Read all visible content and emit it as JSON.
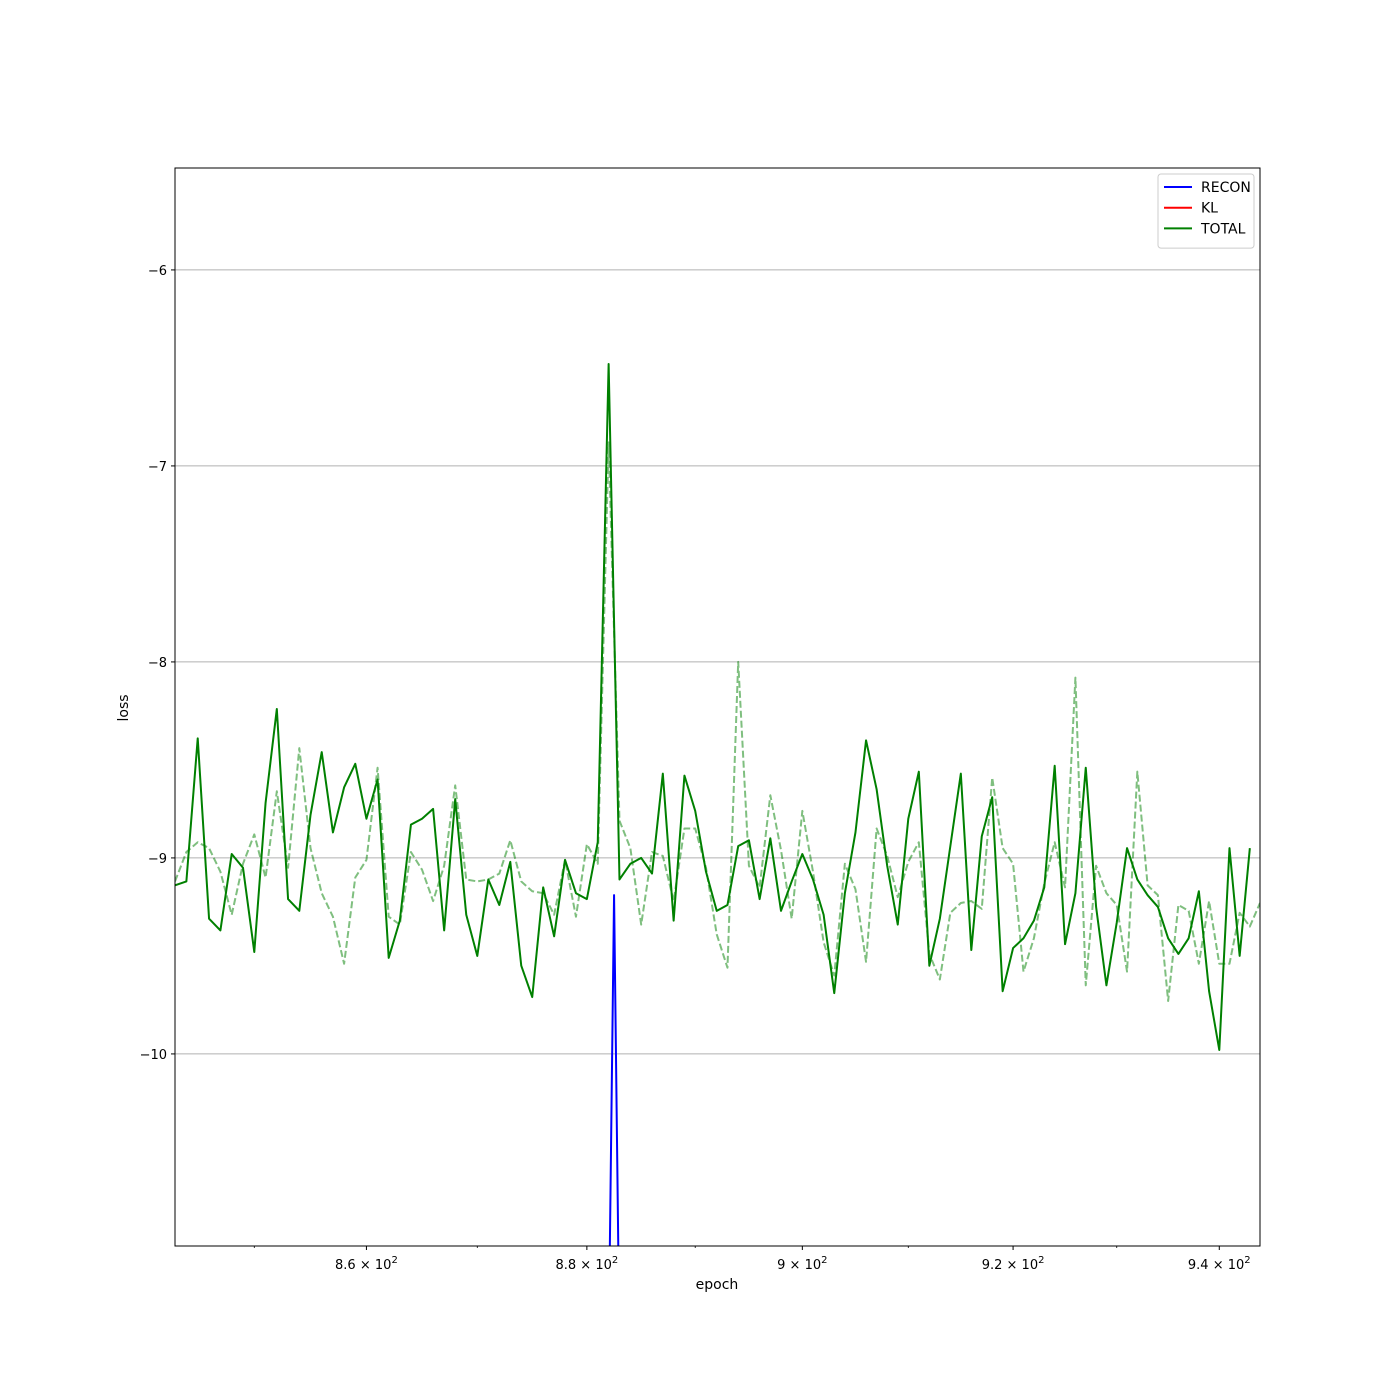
{
  "chart_data": {
    "type": "line",
    "title": "",
    "xlabel": "epoch",
    "ylabel": "loss",
    "x_scale": "log",
    "xlim": [
      843,
      944
    ],
    "ylim": [
      -10.98,
      -5.48
    ],
    "x_ticks": [
      {
        "value": 860,
        "mantissa": "8.6",
        "base": "10",
        "exp": "2"
      },
      {
        "value": 880,
        "mantissa": "8.8",
        "base": "10",
        "exp": "2"
      },
      {
        "value": 900,
        "mantissa": "9",
        "base": "10",
        "exp": "2"
      },
      {
        "value": 920,
        "mantissa": "9.2",
        "base": "10",
        "exp": "2"
      },
      {
        "value": 940,
        "mantissa": "9.4",
        "base": "10",
        "exp": "2"
      }
    ],
    "y_ticks": [
      {
        "value": -6,
        "label": "−6"
      },
      {
        "value": -7,
        "label": "−7"
      },
      {
        "value": -8,
        "label": "−8"
      },
      {
        "value": -9,
        "label": "−9"
      },
      {
        "value": -10,
        "label": "−10"
      }
    ],
    "grid": "horizontal",
    "legend_position": "top-right",
    "x_start": 843,
    "series": [
      {
        "name": "RECON",
        "color": "#0000ff",
        "style": "solid",
        "values_sparse": [
          [
            882,
            -11.5
          ],
          [
            882.5,
            -9.19
          ],
          [
            883,
            -11.5
          ]
        ]
      },
      {
        "name": "KL",
        "color": "#ff0000",
        "style": "solid",
        "values_sparse": []
      },
      {
        "name": "TOTAL",
        "color": "#008000",
        "style": "solid",
        "values": [
          -9.14,
          -9.12,
          -8.39,
          -9.31,
          -9.37,
          -8.98,
          -9.05,
          -9.48,
          -8.72,
          -8.24,
          -9.21,
          -9.27,
          -8.78,
          -8.46,
          -8.87,
          -8.64,
          -8.52,
          -8.8,
          -8.6,
          -9.51,
          -9.32,
          -8.83,
          -8.8,
          -8.75,
          -9.37,
          -8.7,
          -9.29,
          -9.5,
          -9.11,
          -9.24,
          -9.02,
          -9.55,
          -9.71,
          -9.15,
          -9.4,
          -9.01,
          -9.18,
          -9.21,
          -8.92,
          -6.48,
          -9.11,
          -9.03,
          -9.0,
          -9.08,
          -8.57,
          -9.32,
          -8.58,
          -8.76,
          -9.07,
          -9.27,
          -9.24,
          -8.94,
          -8.91,
          -9.21,
          -8.9,
          -9.27,
          -9.12,
          -8.98,
          -9.11,
          -9.29,
          -9.69,
          -9.18,
          -8.87,
          -8.4,
          -8.65,
          -9.04,
          -9.34,
          -8.8,
          -8.56,
          -9.55,
          -9.31,
          -8.94,
          -8.57,
          -9.47,
          -8.89,
          -8.69,
          -9.68,
          -9.46,
          -9.41,
          -9.32,
          -9.15,
          -8.53,
          -9.44,
          -9.18,
          -8.54,
          -9.25,
          -9.65,
          -9.33,
          -8.95,
          -9.11,
          -9.19,
          -9.25,
          -9.41,
          -9.49,
          -9.41,
          -9.17,
          -9.68,
          -9.98,
          -8.95,
          -9.5,
          -8.95
        ]
      },
      {
        "name": "",
        "color": "#008000",
        "style": "dashed",
        "opacity": 0.5,
        "values": [
          -9.12,
          -8.97,
          -8.92,
          -8.95,
          -9.07,
          -9.29,
          -9.03,
          -8.88,
          -9.1,
          -8.66,
          -9.05,
          -8.44,
          -8.95,
          -9.18,
          -9.3,
          -9.54,
          -9.1,
          -9.01,
          -8.54,
          -9.3,
          -9.34,
          -8.97,
          -9.06,
          -9.22,
          -9.04,
          -8.63,
          -9.11,
          -9.12,
          -9.11,
          -9.08,
          -8.91,
          -9.12,
          -9.17,
          -9.18,
          -9.29,
          -9.01,
          -9.3,
          -8.93,
          -9.03,
          -6.88,
          -8.81,
          -8.95,
          -9.34,
          -8.97,
          -8.99,
          -9.22,
          -8.85,
          -8.85,
          -9.05,
          -9.39,
          -9.56,
          -8.0,
          -9.04,
          -9.15,
          -8.68,
          -8.96,
          -9.31,
          -8.76,
          -9.07,
          -9.43,
          -9.6,
          -9.03,
          -9.16,
          -9.53,
          -8.85,
          -8.99,
          -9.2,
          -9.02,
          -8.92,
          -9.49,
          -9.62,
          -9.28,
          -9.23,
          -9.22,
          -9.26,
          -8.59,
          -8.95,
          -9.03,
          -9.58,
          -9.41,
          -9.13,
          -8.92,
          -9.15,
          -8.08,
          -9.65,
          -9.04,
          -9.18,
          -9.24,
          -9.58,
          -8.56,
          -9.14,
          -9.19,
          -9.73,
          -9.24,
          -9.27,
          -9.54,
          -9.22,
          -9.54,
          -9.54,
          -9.28,
          -9.35,
          -9.23
        ]
      }
    ]
  }
}
